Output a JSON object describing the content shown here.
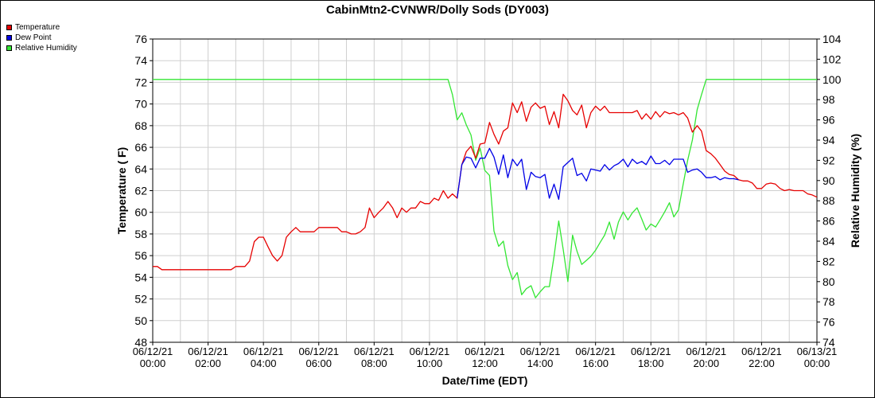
{
  "chart_data": {
    "type": "line",
    "title": "CabinMtn2-CVNWR/Dolly Sods (DY003)",
    "xlabel": "Date/Time (EDT)",
    "ylabel_left": "Temperature ( F)",
    "ylabel_right": "Relative Humidity (%)",
    "ylim_left": [
      48,
      76
    ],
    "ylim_right": [
      74,
      104
    ],
    "yticks_left": [
      48,
      50,
      52,
      54,
      56,
      58,
      60,
      62,
      64,
      66,
      68,
      70,
      72,
      74,
      76
    ],
    "yticks_right": [
      74,
      76,
      78,
      80,
      82,
      84,
      86,
      88,
      90,
      92,
      94,
      96,
      98,
      100,
      102,
      104
    ],
    "x_range_hours": [
      0,
      24
    ],
    "x_ticks": [
      {
        "hour": 0,
        "date": "06/12/21",
        "time": "00:00"
      },
      {
        "hour": 2,
        "date": "06/12/21",
        "time": "02:00"
      },
      {
        "hour": 4,
        "date": "06/12/21",
        "time": "04:00"
      },
      {
        "hour": 6,
        "date": "06/12/21",
        "time": "06:00"
      },
      {
        "hour": 8,
        "date": "06/12/21",
        "time": "08:00"
      },
      {
        "hour": 10,
        "date": "06/12/21",
        "time": "10:00"
      },
      {
        "hour": 12,
        "date": "06/12/21",
        "time": "12:00"
      },
      {
        "hour": 14,
        "date": "06/12/21",
        "time": "14:00"
      },
      {
        "hour": 16,
        "date": "06/12/21",
        "time": "16:00"
      },
      {
        "hour": 18,
        "date": "06/12/21",
        "time": "18:00"
      },
      {
        "hour": 20,
        "date": "06/12/21",
        "time": "20:00"
      },
      {
        "hour": 22,
        "date": "06/12/21",
        "time": "22:00"
      },
      {
        "hour": 24,
        "date": "06/13/21",
        "time": "00:00"
      }
    ],
    "grid": true,
    "legend_position": "top-left",
    "series": [
      {
        "name": "Temperature",
        "color": "#e60000",
        "axis": "left",
        "points": [
          [
            0,
            55
          ],
          [
            0.17,
            55
          ],
          [
            0.33,
            54.7
          ],
          [
            0.5,
            54.7
          ],
          [
            1,
            54.7
          ],
          [
            1.5,
            54.7
          ],
          [
            2,
            54.7
          ],
          [
            2.5,
            54.7
          ],
          [
            2.83,
            54.7
          ],
          [
            3,
            55
          ],
          [
            3.33,
            55
          ],
          [
            3.5,
            55.5
          ],
          [
            3.67,
            57.3
          ],
          [
            3.83,
            57.7
          ],
          [
            4,
            57.7
          ],
          [
            4.17,
            56.8
          ],
          [
            4.33,
            56
          ],
          [
            4.5,
            55.5
          ],
          [
            4.67,
            56
          ],
          [
            4.83,
            57.7
          ],
          [
            5,
            58.2
          ],
          [
            5.17,
            58.6
          ],
          [
            5.33,
            58.2
          ],
          [
            5.5,
            58.2
          ],
          [
            5.67,
            58.2
          ],
          [
            5.83,
            58.2
          ],
          [
            6,
            58.6
          ],
          [
            6.17,
            58.6
          ],
          [
            6.33,
            58.6
          ],
          [
            6.5,
            58.6
          ],
          [
            6.67,
            58.6
          ],
          [
            6.83,
            58.2
          ],
          [
            7,
            58.2
          ],
          [
            7.17,
            58
          ],
          [
            7.33,
            58
          ],
          [
            7.5,
            58.2
          ],
          [
            7.67,
            58.6
          ],
          [
            7.83,
            60.4
          ],
          [
            8,
            59.5
          ],
          [
            8.17,
            60
          ],
          [
            8.33,
            60.4
          ],
          [
            8.5,
            61
          ],
          [
            8.67,
            60.4
          ],
          [
            8.83,
            59.5
          ],
          [
            9,
            60.4
          ],
          [
            9.17,
            60
          ],
          [
            9.33,
            60.4
          ],
          [
            9.5,
            60.4
          ],
          [
            9.67,
            61
          ],
          [
            9.83,
            60.8
          ],
          [
            10,
            60.8
          ],
          [
            10.17,
            61.3
          ],
          [
            10.33,
            61.1
          ],
          [
            10.5,
            62
          ],
          [
            10.67,
            61.3
          ],
          [
            10.83,
            61.7
          ],
          [
            11,
            61.3
          ],
          [
            11.17,
            64.4
          ],
          [
            11.33,
            65.6
          ],
          [
            11.5,
            66.1
          ],
          [
            11.67,
            65
          ],
          [
            11.83,
            66.3
          ],
          [
            12,
            66.4
          ],
          [
            12.17,
            68.3
          ],
          [
            12.33,
            67.2
          ],
          [
            12.5,
            66.3
          ],
          [
            12.67,
            67.5
          ],
          [
            12.83,
            67.8
          ],
          [
            13,
            70.1
          ],
          [
            13.17,
            69.2
          ],
          [
            13.33,
            70.2
          ],
          [
            13.5,
            68.4
          ],
          [
            13.67,
            69.7
          ],
          [
            13.83,
            70.1
          ],
          [
            14,
            69.6
          ],
          [
            14.17,
            69.8
          ],
          [
            14.33,
            68.1
          ],
          [
            14.5,
            69.3
          ],
          [
            14.67,
            67.8
          ],
          [
            14.83,
            70.9
          ],
          [
            15,
            70.3
          ],
          [
            15.17,
            69.4
          ],
          [
            15.33,
            69.0
          ],
          [
            15.5,
            69.9
          ],
          [
            15.67,
            67.8
          ],
          [
            15.83,
            69.2
          ],
          [
            16,
            69.8
          ],
          [
            16.17,
            69.4
          ],
          [
            16.33,
            69.8
          ],
          [
            16.5,
            69.2
          ],
          [
            16.67,
            69.2
          ],
          [
            16.83,
            69.2
          ],
          [
            17,
            69.2
          ],
          [
            17.17,
            69.2
          ],
          [
            17.33,
            69.2
          ],
          [
            17.5,
            69.4
          ],
          [
            17.67,
            68.6
          ],
          [
            17.83,
            69.1
          ],
          [
            18,
            68.6
          ],
          [
            18.17,
            69.3
          ],
          [
            18.33,
            68.8
          ],
          [
            18.5,
            69.3
          ],
          [
            18.67,
            69.1
          ],
          [
            18.83,
            69.2
          ],
          [
            19,
            69.0
          ],
          [
            19.17,
            69.2
          ],
          [
            19.33,
            68.7
          ],
          [
            19.5,
            67.4
          ],
          [
            19.67,
            68.0
          ],
          [
            19.83,
            67.5
          ],
          [
            20,
            65.7
          ],
          [
            20.17,
            65.4
          ],
          [
            20.33,
            65.0
          ],
          [
            20.5,
            64.4
          ],
          [
            20.67,
            63.8
          ],
          [
            20.83,
            63.5
          ],
          [
            21,
            63.4
          ],
          [
            21.17,
            63.0
          ],
          [
            21.33,
            62.9
          ],
          [
            21.5,
            62.9
          ],
          [
            21.67,
            62.7
          ],
          [
            21.83,
            62.2
          ],
          [
            22,
            62.2
          ],
          [
            22.17,
            62.6
          ],
          [
            22.33,
            62.7
          ],
          [
            22.5,
            62.6
          ],
          [
            22.67,
            62.2
          ],
          [
            22.83,
            62.0
          ],
          [
            23,
            62.1
          ],
          [
            23.17,
            62.0
          ],
          [
            23.33,
            62.0
          ],
          [
            23.5,
            62.0
          ],
          [
            23.67,
            61.7
          ],
          [
            23.83,
            61.6
          ],
          [
            24,
            61.4
          ],
          [
            24.17,
            61.3
          ],
          [
            24.33,
            61.1
          ],
          [
            24.5,
            61.0
          ],
          [
            24.67,
            61.0
          ],
          [
            24.83,
            61.0
          ],
          [
            25,
            61.0
          ]
        ]
      },
      {
        "name": "Dew Point",
        "color": "#0000e6",
        "axis": "left",
        "points": [
          [
            11,
            61.3
          ],
          [
            11.17,
            64.4
          ],
          [
            11.33,
            65.1
          ],
          [
            11.5,
            65
          ],
          [
            11.67,
            64.1
          ],
          [
            11.83,
            65
          ],
          [
            12,
            65
          ],
          [
            12.17,
            65.9
          ],
          [
            12.33,
            65.1
          ],
          [
            12.5,
            63.5
          ],
          [
            12.67,
            65.3
          ],
          [
            12.83,
            63.2
          ],
          [
            13,
            64.9
          ],
          [
            13.17,
            64.3
          ],
          [
            13.33,
            64.9
          ],
          [
            13.5,
            62.1
          ],
          [
            13.67,
            63.7
          ],
          [
            13.83,
            63.3
          ],
          [
            14,
            63.2
          ],
          [
            14.17,
            63.5
          ],
          [
            14.33,
            61.3
          ],
          [
            14.5,
            62.6
          ],
          [
            14.67,
            61.2
          ],
          [
            14.83,
            64.2
          ],
          [
            15,
            64.6
          ],
          [
            15.17,
            65.0
          ],
          [
            15.33,
            63.4
          ],
          [
            15.5,
            63.6
          ],
          [
            15.67,
            62.9
          ],
          [
            15.83,
            64.0
          ],
          [
            16,
            63.9
          ],
          [
            16.17,
            63.8
          ],
          [
            16.33,
            64.4
          ],
          [
            16.5,
            63.9
          ],
          [
            16.67,
            64.3
          ],
          [
            16.83,
            64.5
          ],
          [
            17,
            64.9
          ],
          [
            17.17,
            64.2
          ],
          [
            17.33,
            64.9
          ],
          [
            17.5,
            64.5
          ],
          [
            17.67,
            64.7
          ],
          [
            17.83,
            64.4
          ],
          [
            18,
            65.2
          ],
          [
            18.17,
            64.5
          ],
          [
            18.33,
            64.5
          ],
          [
            18.5,
            64.8
          ],
          [
            18.67,
            64.4
          ],
          [
            18.83,
            64.9
          ],
          [
            19,
            64.9
          ],
          [
            19.17,
            64.9
          ],
          [
            19.33,
            63.7
          ],
          [
            19.5,
            63.9
          ],
          [
            19.67,
            64.0
          ],
          [
            19.83,
            63.7
          ],
          [
            20,
            63.2
          ],
          [
            20.17,
            63.2
          ],
          [
            20.33,
            63.3
          ],
          [
            20.5,
            63.0
          ],
          [
            20.67,
            63.2
          ],
          [
            20.83,
            63.1
          ],
          [
            21,
            63.1
          ],
          [
            21.17,
            63.0
          ]
        ]
      },
      {
        "name": "Relative Humidity",
        "color": "#33e633",
        "axis": "right",
        "points": [
          [
            0,
            100
          ],
          [
            10.5,
            100
          ],
          [
            10.67,
            100
          ],
          [
            10.83,
            98.5
          ],
          [
            11,
            96
          ],
          [
            11.17,
            96.7
          ],
          [
            11.33,
            95.5
          ],
          [
            11.5,
            94.5
          ],
          [
            11.67,
            92
          ],
          [
            11.83,
            93.2
          ],
          [
            12,
            91
          ],
          [
            12.17,
            90.5
          ],
          [
            12.33,
            85
          ],
          [
            12.5,
            83.5
          ],
          [
            12.67,
            84
          ],
          [
            12.83,
            81.6
          ],
          [
            13,
            80.2
          ],
          [
            13.17,
            80.9
          ],
          [
            13.33,
            78.7
          ],
          [
            13.5,
            79.3
          ],
          [
            13.67,
            79.6
          ],
          [
            13.83,
            78.4
          ],
          [
            14,
            79.0
          ],
          [
            14.17,
            79.5
          ],
          [
            14.33,
            79.5
          ],
          [
            14.5,
            82.5
          ],
          [
            14.67,
            86
          ],
          [
            14.83,
            83.2
          ],
          [
            15,
            80.0
          ],
          [
            15.17,
            84.6
          ],
          [
            15.33,
            83.0
          ],
          [
            15.5,
            81.7
          ],
          [
            15.67,
            82.1
          ],
          [
            15.83,
            82.5
          ],
          [
            16,
            83.1
          ],
          [
            16.17,
            83.9
          ],
          [
            16.33,
            84.6
          ],
          [
            16.5,
            85.9
          ],
          [
            16.67,
            84.2
          ],
          [
            16.83,
            85.9
          ],
          [
            17,
            86.9
          ],
          [
            17.17,
            86.1
          ],
          [
            17.33,
            86.8
          ],
          [
            17.5,
            87.3
          ],
          [
            17.67,
            86.2
          ],
          [
            17.83,
            85.1
          ],
          [
            18,
            85.7
          ],
          [
            18.17,
            85.4
          ],
          [
            18.33,
            86.1
          ],
          [
            18.5,
            86.9
          ],
          [
            18.67,
            87.8
          ],
          [
            18.83,
            86.4
          ],
          [
            19,
            87.1
          ],
          [
            19.17,
            89.7
          ],
          [
            19.33,
            92.0
          ],
          [
            19.5,
            94.0
          ],
          [
            19.67,
            97.0
          ],
          [
            19.83,
            98.5
          ],
          [
            20,
            100
          ],
          [
            24,
            100
          ]
        ]
      }
    ]
  }
}
